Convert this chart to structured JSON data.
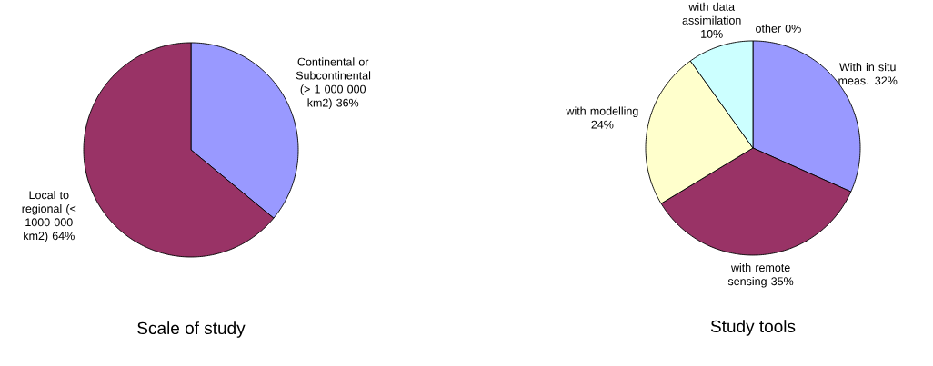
{
  "chart_data": [
    {
      "type": "pie",
      "title": "Scale of study",
      "categories": [
        "Continental or Subcontinental (> 1 000 000 km2)",
        "Local to regional (< 1000 000 km2)"
      ],
      "values": [
        36,
        64
      ],
      "value_labels": [
        "36%",
        "64%"
      ],
      "colors": [
        "#9999ff",
        "#993366"
      ]
    },
    {
      "type": "pie",
      "title": "Study tools",
      "categories": [
        "With in situ meas.",
        "with remote sensing",
        "with modelling",
        "with data assimilation",
        "other"
      ],
      "values": [
        32,
        35,
        24,
        10,
        0
      ],
      "value_labels": [
        "32%",
        "35%",
        "24%",
        "10%",
        "0%"
      ],
      "colors": [
        "#9999ff",
        "#993366",
        "#ffffcc",
        "#ccffff",
        "#660066"
      ]
    }
  ]
}
